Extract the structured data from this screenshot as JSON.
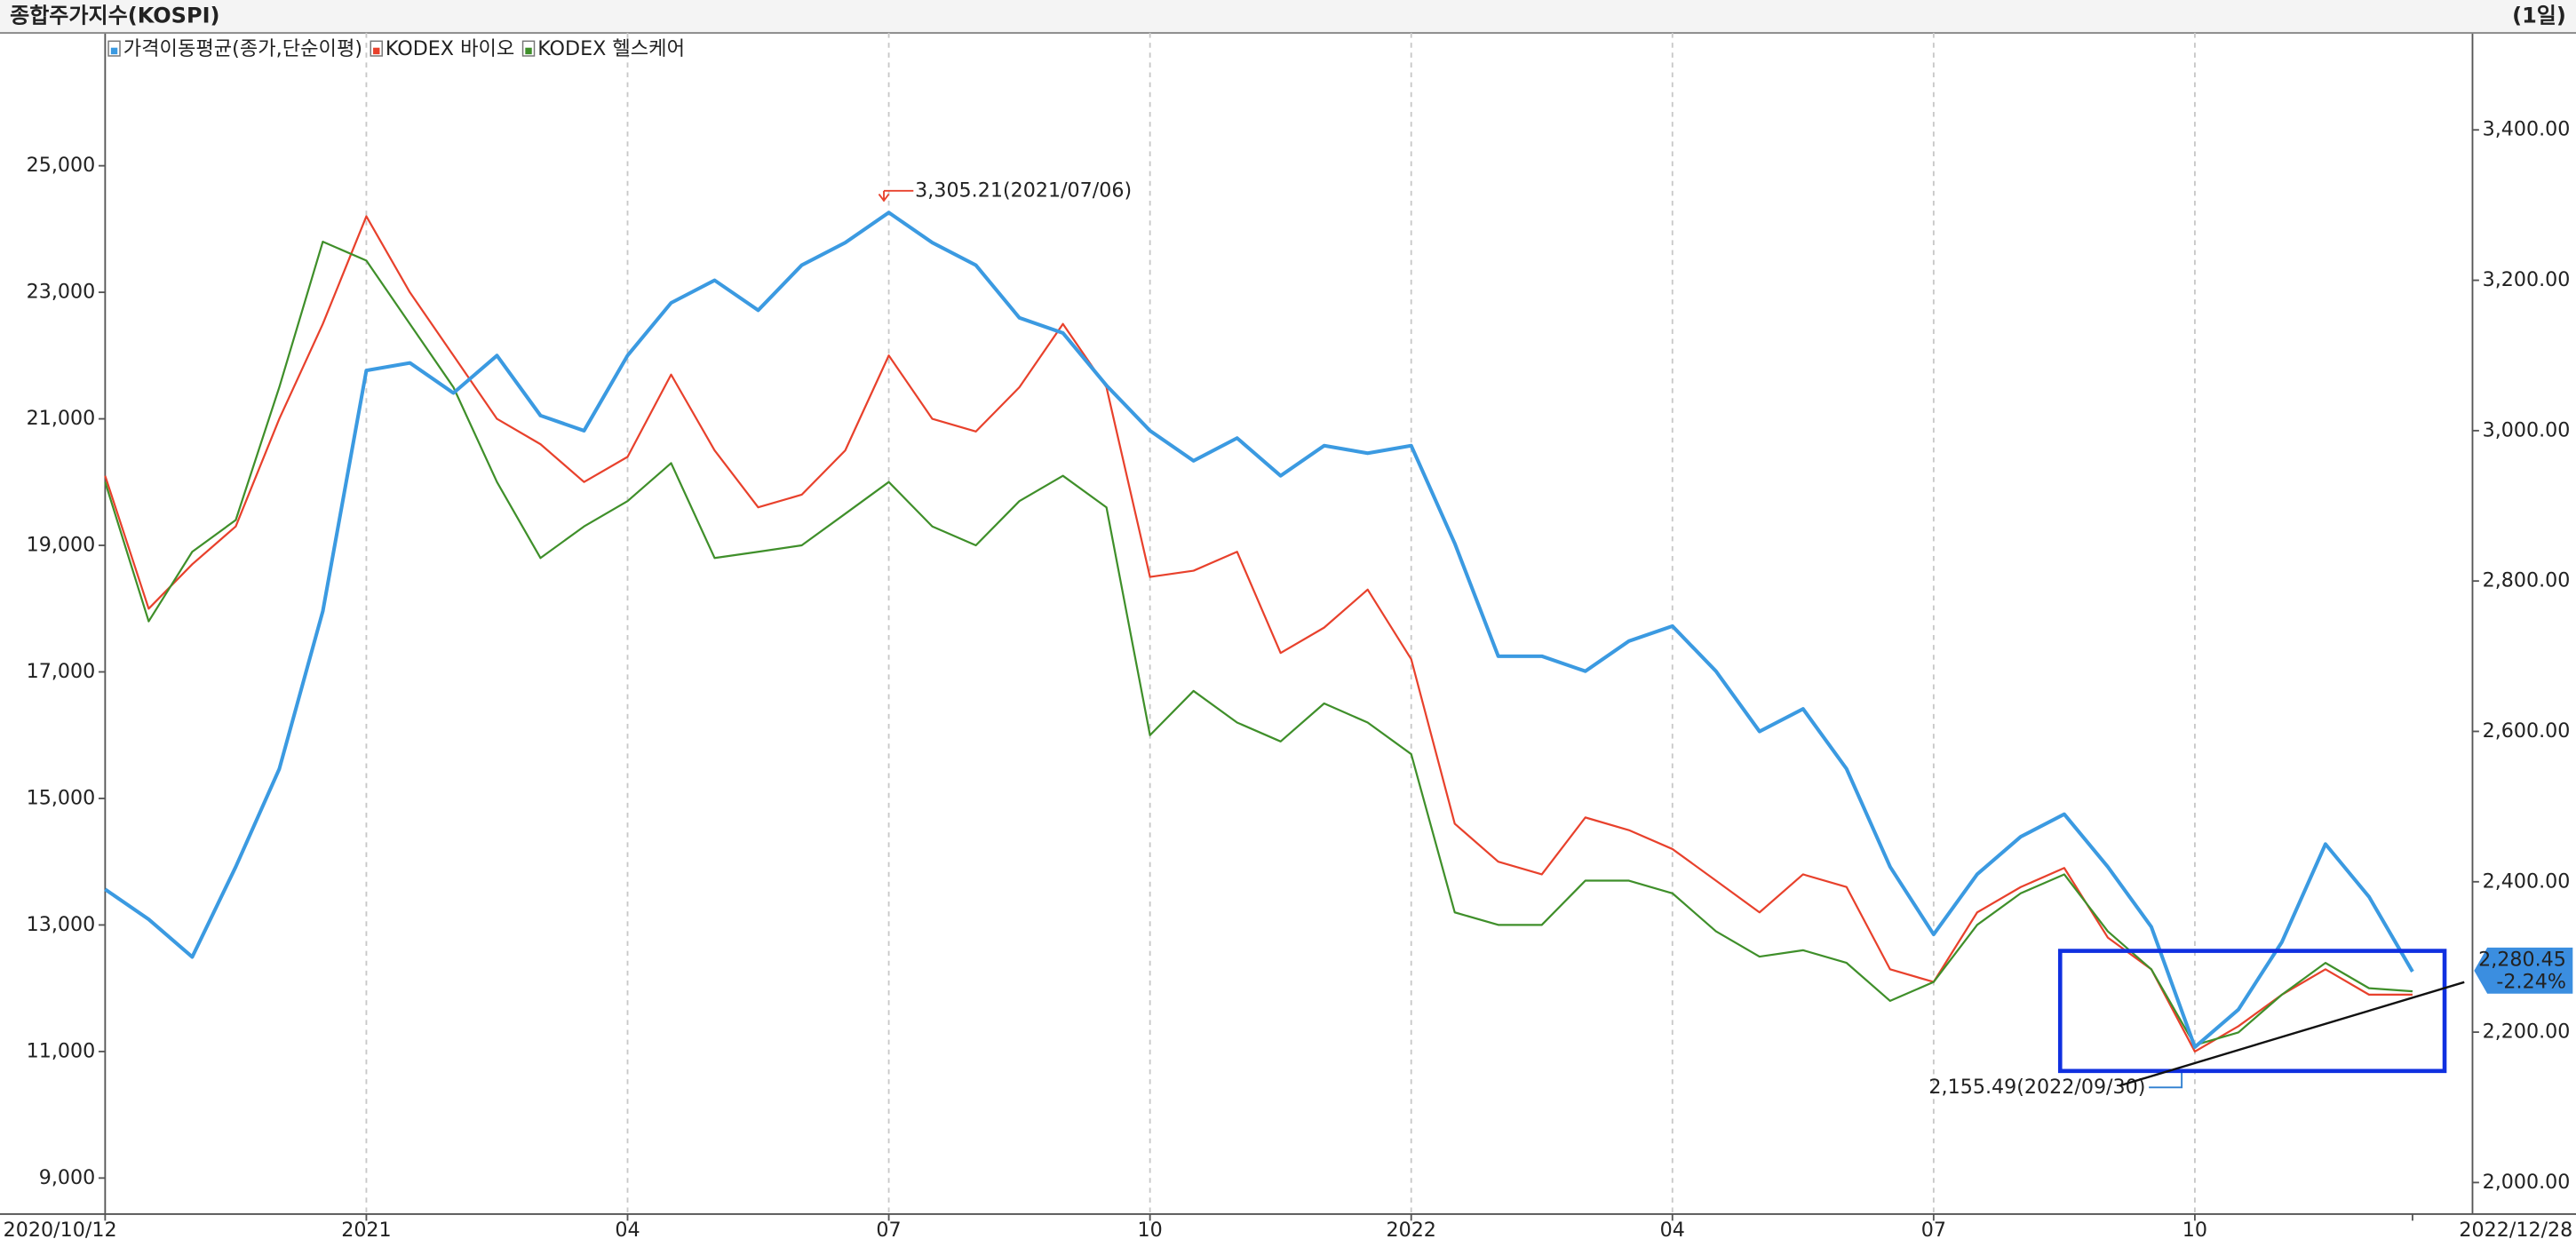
{
  "chart_data": {
    "type": "line",
    "title": "종합주가지수(KOSPI)",
    "period": "(1일)",
    "categories": [
      "2020/10/12",
      null,
      null,
      null,
      null,
      null,
      "2021",
      null,
      null,
      null,
      null,
      null,
      "04",
      null,
      null,
      null,
      null,
      null,
      "07",
      null,
      null,
      null,
      null,
      null,
      "10",
      null,
      null,
      null,
      null,
      null,
      "2022",
      null,
      null,
      null,
      null,
      null,
      "04",
      null,
      null,
      null,
      null,
      null,
      "07",
      null,
      null,
      null,
      null,
      null,
      "10",
      null,
      null,
      null,
      null,
      "2022/12/28"
    ],
    "series": [
      {
        "name": "가격이동평균(종가,단순이평)",
        "color": "#3b9ae1",
        "axis": "y2",
        "values": [
          2390,
          2350,
          2300,
          2420,
          2550,
          2760,
          3080,
          3090,
          3050,
          3100,
          3020,
          3000,
          3100,
          3170,
          3200,
          3160,
          3220,
          3250,
          3290,
          3250,
          3220,
          3150,
          3130,
          3060,
          3000,
          2960,
          2990,
          2940,
          2980,
          2970,
          2980,
          2850,
          2700,
          2700,
          2680,
          2720,
          2740,
          2680,
          2600,
          2630,
          2550,
          2420,
          2330,
          2410,
          2460,
          2490,
          2420,
          2340,
          2180,
          2230,
          2320,
          2450,
          2380,
          2280.45
        ]
      },
      {
        "name": "KODEX 바이오",
        "color": "#e8412c",
        "values": [
          20100,
          18000,
          18700,
          19300,
          21000,
          22500,
          24200,
          23000,
          22000,
          21000,
          20600,
          20000,
          20400,
          21700,
          20500,
          19600,
          19800,
          20500,
          22000,
          21000,
          20800,
          21500,
          22500,
          21500,
          18500,
          18600,
          18900,
          17300,
          17700,
          18300,
          17200,
          14600,
          14000,
          13800,
          14700,
          14500,
          14200,
          13700,
          13200,
          13800,
          13600,
          12300,
          12100,
          13200,
          13600,
          13900,
          12800,
          12300,
          11000,
          11400,
          11900,
          12300,
          11900,
          11900
        ]
      },
      {
        "name": "KODEX 헬스케어",
        "color": "#3f8f2a",
        "values": [
          20000,
          17800,
          18900,
          19400,
          21500,
          23800,
          23500,
          22500,
          21500,
          20000,
          18800,
          19300,
          19700,
          20300,
          18800,
          18900,
          19000,
          19500,
          20000,
          19300,
          19000,
          19700,
          20100,
          19600,
          16000,
          16700,
          16200,
          15900,
          16500,
          16200,
          15700,
          13200,
          13000,
          13000,
          13700,
          13700,
          13500,
          12900,
          12500,
          12600,
          12400,
          11800,
          12100,
          13000,
          13500,
          13800,
          12900,
          12300,
          11100,
          11300,
          11900,
          12400,
          12000,
          11950
        ]
      }
    ],
    "ylim": [
      8430,
      27100
    ],
    "yticks": [
      {
        "value": 9000,
        "label": "9,000"
      },
      {
        "value": 11000,
        "label": "11,000"
      },
      {
        "value": 13000,
        "label": "13,000"
      },
      {
        "value": 15000,
        "label": "15,000"
      },
      {
        "value": 17000,
        "label": "17,000"
      },
      {
        "value": 19000,
        "label": "19,000"
      },
      {
        "value": 21000,
        "label": "21,000"
      },
      {
        "value": 23000,
        "label": "23,000"
      },
      {
        "value": 25000,
        "label": "25,000"
      }
    ],
    "y2lim": [
      1958,
      3529
    ],
    "y2ticks": [
      {
        "value": 2000,
        "label": "2,000.00"
      },
      {
        "value": 2200,
        "label": "2,200.00"
      },
      {
        "value": 2400,
        "label": "2,400.00"
      },
      {
        "value": 2600,
        "label": "2,600.00"
      },
      {
        "value": 2800,
        "label": "2,800.00"
      },
      {
        "value": 3000,
        "label": "3,000.00"
      },
      {
        "value": 3200,
        "label": "3,200.00"
      },
      {
        "value": 3400,
        "label": "3,400.00"
      }
    ],
    "annotations": {
      "high": "3,305.21(2021/07/06)",
      "low": "2,155.49(2022/09/30)",
      "last_value": "2,280.45",
      "last_change": "-2.24%"
    },
    "grid": true
  }
}
